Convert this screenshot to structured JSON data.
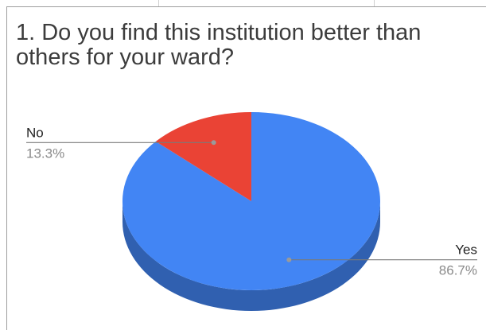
{
  "chart_data": {
    "type": "pie",
    "title": "1. Do you find this institution better than others for your ward?",
    "slices": [
      {
        "label": "Yes",
        "value": 86.7,
        "value_label": "86.7%",
        "color": "#4285f4"
      },
      {
        "label": "No",
        "value": 13.3,
        "value_label": "13.3%",
        "color": "#ea4335"
      }
    ],
    "style": "3d",
    "legend": "callout labels"
  }
}
